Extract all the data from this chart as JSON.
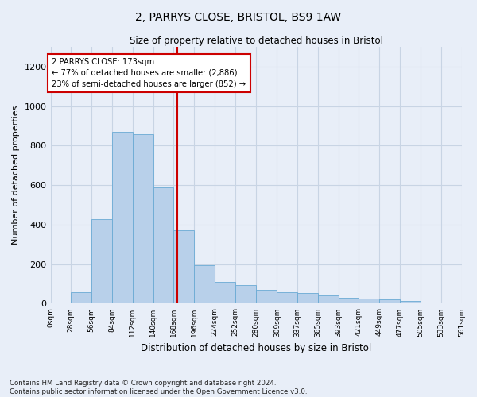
{
  "title_line1": "2, PARRYS CLOSE, BRISTOL, BS9 1AW",
  "title_line2": "Size of property relative to detached houses in Bristol",
  "xlabel": "Distribution of detached houses by size in Bristol",
  "ylabel": "Number of detached properties",
  "footnote1": "Contains HM Land Registry data © Crown copyright and database right 2024.",
  "footnote2": "Contains public sector information licensed under the Open Government Licence v3.0.",
  "annotation_title": "2 PARRYS CLOSE: 173sqm",
  "annotation_line2": "← 77% of detached houses are smaller (2,886)",
  "annotation_line3": "23% of semi-detached houses are larger (852) →",
  "property_size": 173,
  "bin_edges": [
    0,
    28,
    56,
    84,
    112,
    140,
    168,
    196,
    224,
    252,
    280,
    309,
    337,
    365,
    393,
    421,
    449,
    477,
    505,
    533,
    561
  ],
  "bin_labels": [
    "0sqm",
    "28sqm",
    "56sqm",
    "84sqm",
    "112sqm",
    "140sqm",
    "168sqm",
    "196sqm",
    "224sqm",
    "252sqm",
    "280sqm",
    "309sqm",
    "337sqm",
    "365sqm",
    "393sqm",
    "421sqm",
    "449sqm",
    "477sqm",
    "505sqm",
    "533sqm",
    "561sqm"
  ],
  "counts": [
    5,
    60,
    430,
    870,
    860,
    590,
    370,
    195,
    110,
    95,
    70,
    60,
    55,
    40,
    30,
    25,
    20,
    15,
    5,
    2,
    0
  ],
  "bar_color": "#b8d0ea",
  "bar_edge_color": "#6aaad4",
  "vline_color": "#cc0000",
  "vline_x": 173,
  "annotation_box_color": "#ffffff",
  "annotation_box_edge": "#cc0000",
  "grid_color": "#c8d4e4",
  "bg_color": "#e8eef8",
  "ylim": [
    0,
    1300
  ],
  "yticks": [
    0,
    200,
    400,
    600,
    800,
    1000,
    1200
  ]
}
